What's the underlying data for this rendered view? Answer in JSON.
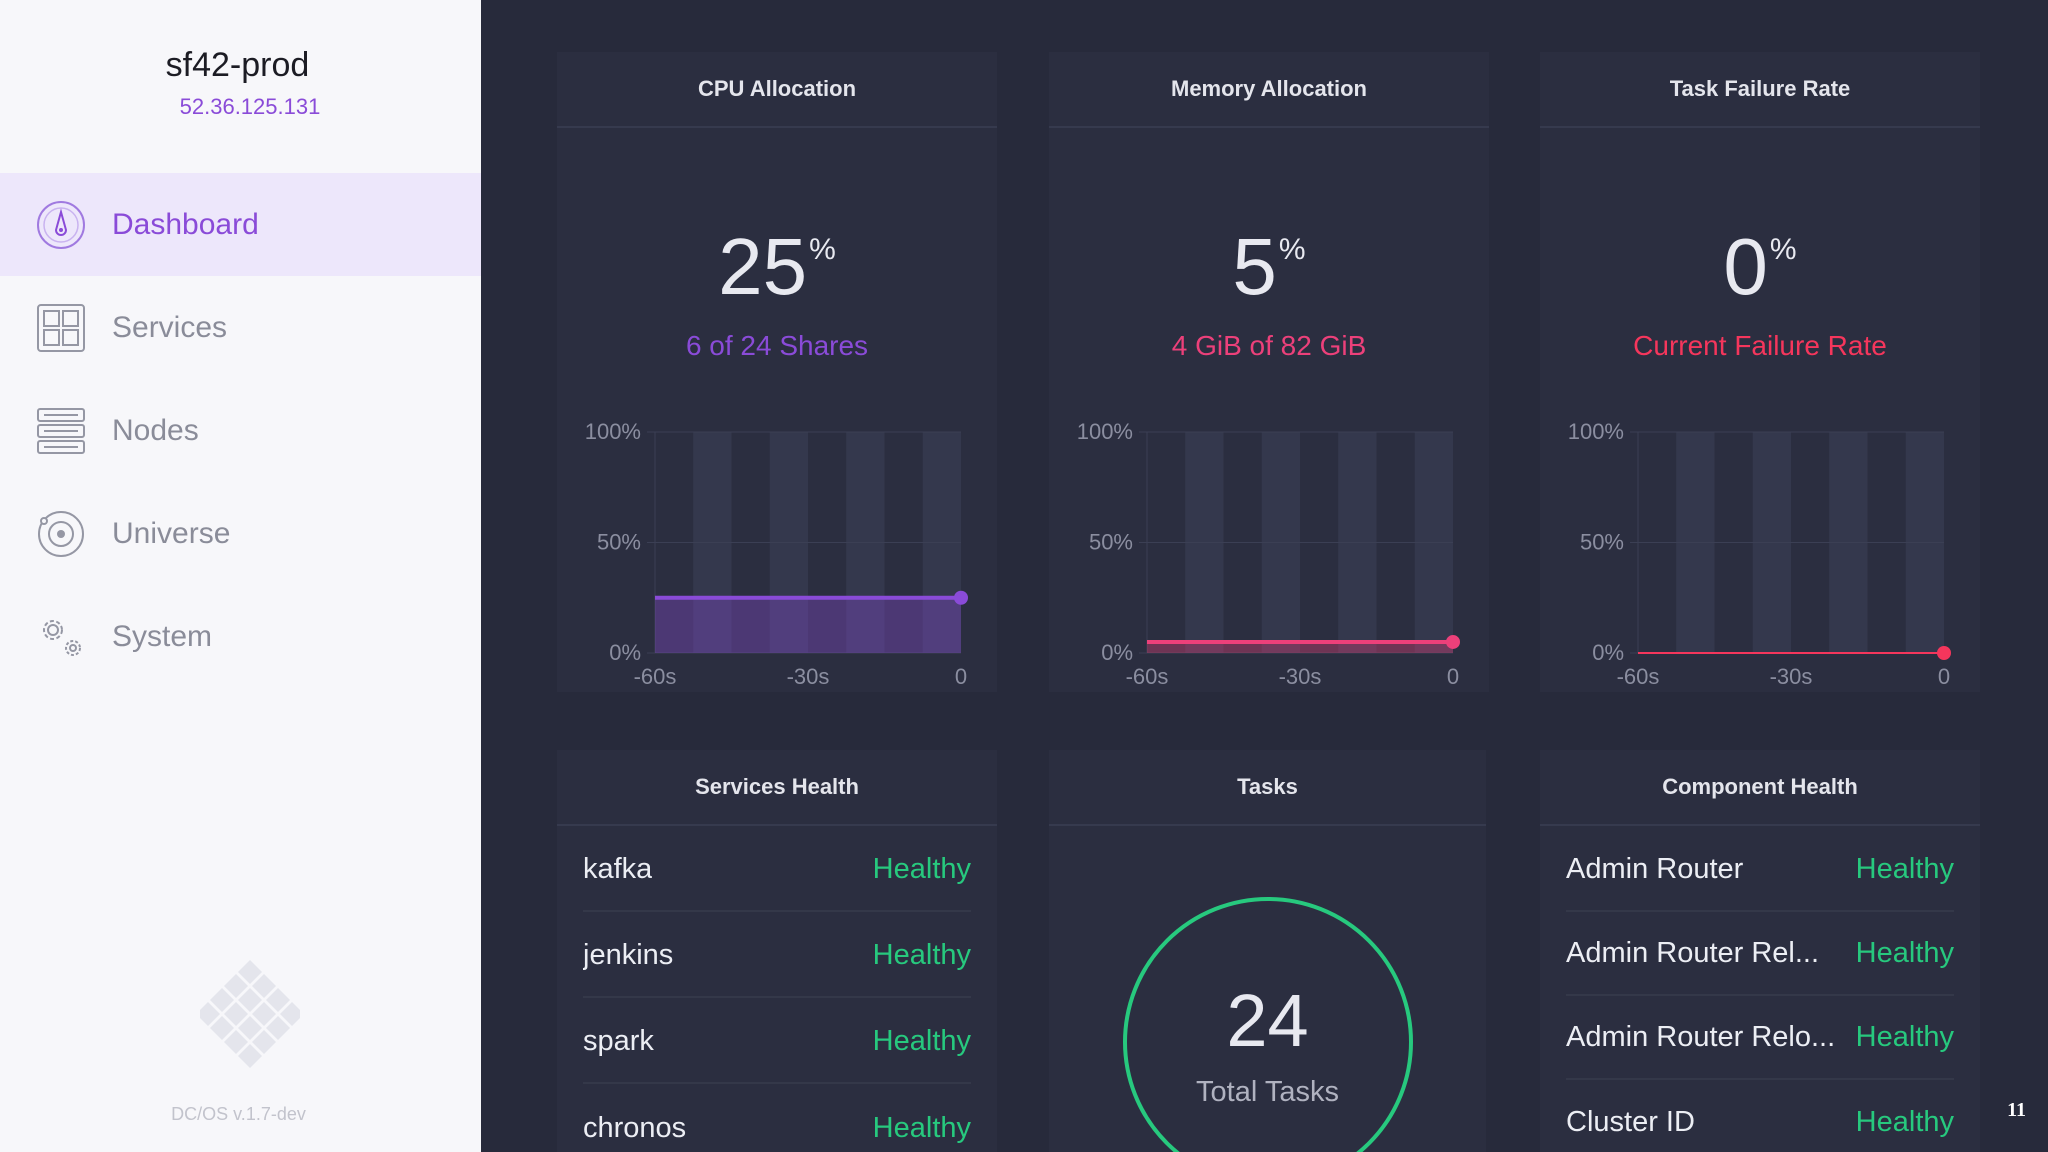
{
  "sidebar": {
    "cluster_name": "sf42-prod",
    "cluster_ip": "52.36.125.131",
    "items": [
      {
        "label": "Dashboard",
        "icon": "dashboard-icon",
        "active": true
      },
      {
        "label": "Services",
        "icon": "services-grid-icon",
        "active": false
      },
      {
        "label": "Nodes",
        "icon": "nodes-server-icon",
        "active": false
      },
      {
        "label": "Universe",
        "icon": "universe-icon",
        "active": false
      },
      {
        "label": "System",
        "icon": "system-gear-icon",
        "active": false
      }
    ],
    "version": "DC/OS v.1.7-dev"
  },
  "colors": {
    "accent_purple": "#8a4bd8",
    "memory_pink": "#ec407a",
    "failure_red": "#f5365c",
    "healthy_green": "#27c97e",
    "panel_bg": "#2b2e40",
    "main_bg": "#272a3b"
  },
  "cpu": {
    "title": "CPU Allocation",
    "value": "25",
    "unit": "%",
    "subtitle": "6 of 24 Shares"
  },
  "memory": {
    "title": "Memory Allocation",
    "value": "5",
    "unit": "%",
    "subtitle": "4 GiB of 82 GiB"
  },
  "failure": {
    "title": "Task Failure Rate",
    "value": "0",
    "unit": "%",
    "subtitle": "Current Failure Rate"
  },
  "chart_data": [
    {
      "type": "area",
      "title": "CPU Allocation",
      "x_ticks": [
        "-60s",
        "-30s",
        "0"
      ],
      "y_ticks": [
        "100%",
        "50%",
        "0%"
      ],
      "ylim": [
        0,
        100
      ],
      "x": [
        -60,
        0
      ],
      "values": [
        25,
        25
      ],
      "color": "#8a4bd8"
    },
    {
      "type": "area",
      "title": "Memory Allocation",
      "x_ticks": [
        "-60s",
        "-30s",
        "0"
      ],
      "y_ticks": [
        "100%",
        "50%",
        "0%"
      ],
      "ylim": [
        0,
        100
      ],
      "x": [
        -60,
        0
      ],
      "values": [
        5,
        5
      ],
      "color": "#ec407a"
    },
    {
      "type": "area",
      "title": "Task Failure Rate",
      "x_ticks": [
        "-60s",
        "-30s",
        "0"
      ],
      "y_ticks": [
        "100%",
        "50%",
        "0%"
      ],
      "ylim": [
        0,
        100
      ],
      "x": [
        -60,
        0
      ],
      "values": [
        0,
        0
      ],
      "color": "#f5365c"
    }
  ],
  "services_health": {
    "title": "Services Health",
    "rows": [
      {
        "name": "kafka",
        "status": "Healthy"
      },
      {
        "name": "jenkins",
        "status": "Healthy"
      },
      {
        "name": "spark",
        "status": "Healthy"
      },
      {
        "name": "chronos",
        "status": "Healthy"
      }
    ]
  },
  "tasks": {
    "title": "Tasks",
    "total": "24",
    "label": "Total Tasks"
  },
  "component_health": {
    "title": "Component Health",
    "rows": [
      {
        "name": "Admin Router",
        "status": "Healthy"
      },
      {
        "name": "Admin Router Rel...",
        "status": "Healthy"
      },
      {
        "name": "Admin Router Relo...",
        "status": "Healthy"
      },
      {
        "name": "Cluster ID",
        "status": "Healthy"
      }
    ]
  },
  "slide_number": "11"
}
